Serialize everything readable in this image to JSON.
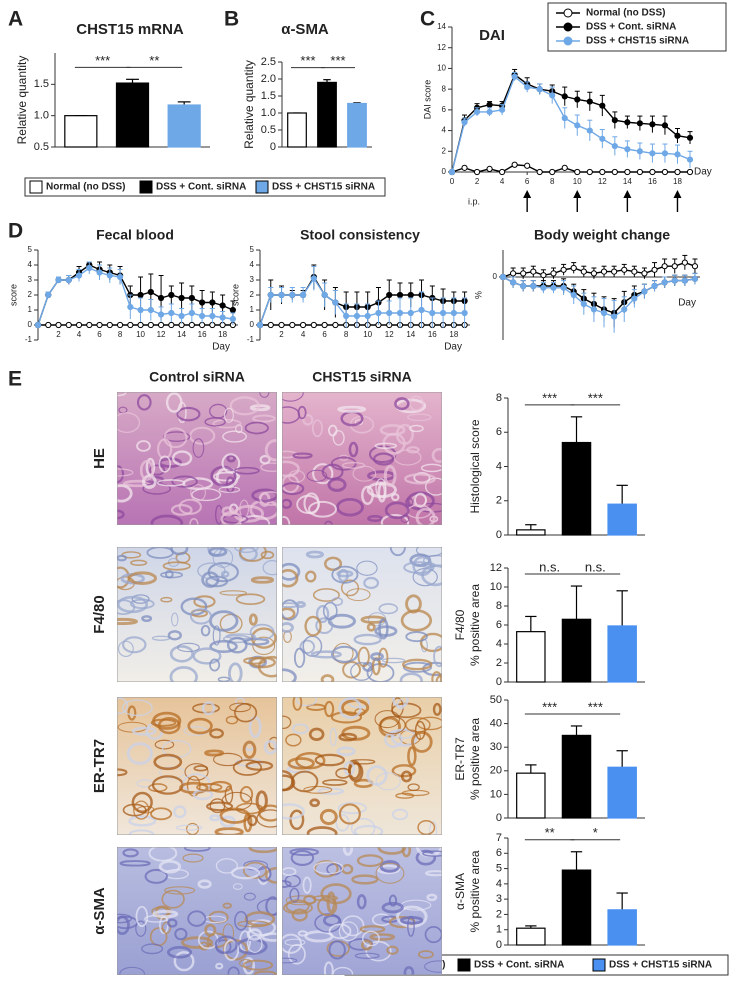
{
  "chart_data": [
    {
      "type": "bar",
      "panel": "A",
      "title": "CHST15 mRNA",
      "ylabel": [
        "Relative quantity"
      ],
      "values": [
        1.0,
        1.52,
        1.17
      ],
      "errors": [
        0,
        0.06,
        0.05
      ],
      "colors": [
        "#ffffff",
        "#000000",
        "#6fa8e6"
      ],
      "ylim": [
        0.5,
        2.0
      ],
      "yticks": [
        0.5,
        {
          "value": 1,
          "label": "1.0"
        },
        1.5
      ],
      "annotations": [
        "***",
        "**"
      ]
    },
    {
      "type": "bar",
      "panel": "B",
      "title": "α-SMA",
      "ylabel": [
        "Relative quantity"
      ],
      "values": [
        1.0,
        1.9,
        1.28
      ],
      "errors": [
        0,
        0.08,
        0.02
      ],
      "colors": [
        "#ffffff",
        "#000000",
        "#6fa8e6"
      ],
      "ylim": [
        0,
        2.5
      ],
      "yticks": [
        0,
        0.5,
        {
          "value": 1,
          "label": "1.0"
        },
        1.5,
        {
          "value": 2,
          "label": "2.0"
        },
        2.5
      ],
      "annotations": [
        "***",
        "***"
      ]
    },
    {
      "type": "line",
      "panel": "C",
      "title": "DAI",
      "ylabel": [
        "DAI score"
      ],
      "xlabel": "Day",
      "x": [
        0,
        1,
        2,
        3,
        4,
        5,
        6,
        7,
        8,
        9,
        10,
        11,
        12,
        13,
        14,
        15,
        16,
        17,
        18,
        19
      ],
      "xlim": [
        0,
        19
      ],
      "xticks": [
        0,
        2,
        4,
        6,
        8,
        10,
        12,
        14,
        16,
        18
      ],
      "ylim": [
        0,
        14
      ],
      "yticks": [
        0,
        2,
        4,
        6,
        8,
        10,
        12,
        14
      ],
      "injection_label": "i.p.",
      "injection_days": [
        6,
        10,
        14,
        18
      ],
      "series": [
        {
          "name": "Normal (no DSS)",
          "color": "#000000",
          "fill": "#ffffff",
          "values": [
            0,
            0.4,
            0,
            0.3,
            0,
            0.7,
            0.6,
            0,
            0,
            0.4,
            0,
            0,
            0,
            0,
            0,
            0,
            0,
            0,
            0,
            0
          ]
        },
        {
          "name": "DSS + Cont. siRNA",
          "color": "#000000",
          "fill": "#000000",
          "values": [
            0,
            5.0,
            6.2,
            6.5,
            6.4,
            9.4,
            8.5,
            8.0,
            7.8,
            7.3,
            7.0,
            6.8,
            6.4,
            5.0,
            4.8,
            4.7,
            4.6,
            4.5,
            3.5,
            3.3
          ],
          "errors": [
            0,
            0.5,
            0.4,
            0.3,
            0.4,
            0.5,
            0.6,
            0.5,
            0.6,
            0.9,
            0.8,
            0.9,
            1.0,
            0.8,
            0.6,
            0.7,
            0.8,
            0.9,
            0.7,
            0.6
          ]
        },
        {
          "name": "DSS + CHST15 siRNA",
          "color": "#6fa8e6",
          "fill": "#6fa8e6",
          "values": [
            0,
            4.8,
            5.8,
            5.8,
            6.0,
            9.2,
            8.2,
            8.0,
            7.4,
            5.2,
            4.5,
            4.0,
            3.2,
            2.5,
            2.2,
            2.0,
            1.8,
            1.8,
            1.7,
            1.2
          ],
          "errors": [
            0,
            0.4,
            0.4,
            0.4,
            0.5,
            0.4,
            0.5,
            0.5,
            0.8,
            1.0,
            1.0,
            1.0,
            0.9,
            0.9,
            0.8,
            0.8,
            0.9,
            0.9,
            0.9,
            0.8
          ]
        }
      ]
    },
    {
      "type": "line",
      "panel": "D",
      "title": "Fecal blood",
      "ylabel": [
        "score"
      ],
      "xlabel": "Day",
      "x": [
        0,
        1,
        2,
        3,
        4,
        5,
        6,
        7,
        8,
        9,
        10,
        11,
        12,
        13,
        14,
        15,
        16,
        17,
        18,
        19
      ],
      "xlim": [
        0,
        19.5
      ],
      "xticks": [
        2,
        4,
        6,
        8,
        10,
        12,
        14,
        16,
        18
      ],
      "ylim": [
        -1,
        5
      ],
      "yticks": [
        -1,
        0,
        1,
        2,
        3,
        4,
        5
      ],
      "series": [
        {
          "color": "#000000",
          "fill": "#ffffff",
          "values": [
            0,
            0,
            0,
            0,
            0,
            0,
            0,
            0,
            0,
            0,
            0,
            0,
            0,
            0,
            0,
            0,
            0,
            0,
            0,
            0
          ]
        },
        {
          "color": "#000000",
          "fill": "#000000",
          "values": [
            0,
            2,
            3,
            3,
            3.5,
            4,
            3.7,
            3.5,
            3.3,
            2,
            2,
            2.2,
            1.8,
            2,
            1.8,
            1.8,
            1.5,
            1.5,
            1.3,
            1.0
          ],
          "errors": [
            0,
            0.2,
            0.2,
            0.3,
            0.4,
            0.2,
            0.5,
            0.5,
            0.6,
            0.6,
            1.2,
            1.2,
            1.5,
            0.6,
            1.0,
            0.8,
            0.8,
            0.7,
            0.7,
            0.6
          ]
        },
        {
          "color": "#6fa8e6",
          "fill": "#6fa8e6",
          "values": [
            0,
            2,
            3,
            3,
            3.3,
            3.8,
            3.5,
            3.3,
            3.2,
            1.2,
            1.0,
            1.0,
            0.7,
            0.8,
            0.6,
            0.8,
            0.6,
            0.6,
            0.5,
            0.4
          ],
          "errors": [
            0,
            0.2,
            0.2,
            0.3,
            0.4,
            0.4,
            0.5,
            0.5,
            0.5,
            0.8,
            0.8,
            0.7,
            0.5,
            0.6,
            0.5,
            0.6,
            0.5,
            0.5,
            0.4,
            0.4
          ]
        }
      ]
    },
    {
      "type": "line",
      "title": "Stool consistency",
      "ylabel": [
        "score"
      ],
      "xlabel": "Day",
      "x": [
        0,
        1,
        2,
        3,
        4,
        5,
        6,
        7,
        8,
        9,
        10,
        11,
        12,
        13,
        14,
        15,
        16,
        17,
        18,
        19
      ],
      "xlim": [
        0,
        19.5
      ],
      "xticks": [
        2,
        4,
        6,
        8,
        10,
        12,
        14,
        16,
        18
      ],
      "ylim": [
        -1,
        5
      ],
      "yticks": [
        -1,
        0,
        1,
        2,
        3,
        4,
        5
      ],
      "series": [
        {
          "color": "#000000",
          "fill": "#ffffff",
          "values": [
            0,
            0,
            0,
            0,
            0,
            0,
            0,
            0,
            0,
            0,
            0,
            0,
            0,
            0,
            0,
            0,
            0,
            0,
            0,
            0
          ]
        },
        {
          "color": "#000000",
          "fill": "#000000",
          "values": [
            0,
            2,
            2,
            2,
            2,
            3.2,
            2,
            1.5,
            1.2,
            1.2,
            1.2,
            1.5,
            2,
            2,
            2,
            2,
            1.8,
            1.6,
            1.6,
            1.6
          ],
          "errors": [
            0,
            1,
            0.6,
            0.3,
            0.3,
            0.8,
            1,
            1,
            1,
            1,
            1,
            1,
            1,
            0.8,
            0.8,
            1,
            0.8,
            0.8,
            0.6,
            0.6
          ]
        },
        {
          "color": "#6fa8e6",
          "fill": "#6fa8e6",
          "values": [
            0,
            2,
            2,
            2,
            2,
            3.1,
            2,
            1.5,
            0.6,
            0.6,
            0.6,
            0.8,
            0.8,
            0.8,
            0.8,
            1,
            0.8,
            0.8,
            0.8,
            0.8
          ],
          "errors": [
            0,
            0.5,
            0.5,
            0.5,
            0.5,
            0.8,
            0.8,
            0.8,
            0.8,
            0.8,
            0.8,
            0.8,
            0.8,
            1,
            1,
            1.2,
            1,
            1,
            1,
            1
          ]
        }
      ]
    },
    {
      "type": "line",
      "title": "Body weight change",
      "ylabel": [
        "%"
      ],
      "xlabel": "Day",
      "x": [
        0,
        1,
        2,
        3,
        4,
        5,
        6,
        7,
        8,
        9,
        10,
        11,
        12,
        13,
        14,
        15,
        16,
        17,
        18,
        19
      ],
      "xlim": [
        0,
        19.5
      ],
      "ylim": [
        -35,
        15
      ],
      "yticks": [
        0
      ],
      "series": [
        {
          "color": "#000000",
          "fill": "#ffffff",
          "values": [
            0,
            2,
            2,
            3,
            1,
            2,
            4,
            5,
            3,
            2,
            3,
            3,
            4,
            3,
            2,
            4,
            6,
            6,
            8,
            6
          ],
          "errors": [
            0,
            3,
            3,
            3,
            3,
            3,
            3,
            3,
            3,
            3,
            3,
            3,
            3,
            3,
            3,
            4,
            4,
            4,
            4,
            4
          ]
        },
        {
          "color": "#000000",
          "fill": "#000000",
          "values": [
            0,
            -3,
            -5,
            -5,
            -5,
            -5,
            -5,
            -8,
            -12,
            -15,
            -18,
            -20,
            -14,
            -10,
            -8,
            -5,
            -3,
            -2,
            -2,
            -1
          ],
          "errors": [
            0,
            3,
            3,
            3,
            3,
            3,
            4,
            4,
            5,
            6,
            7,
            8,
            6,
            5,
            4,
            3,
            3,
            3,
            3,
            3
          ]
        },
        {
          "color": "#6fa8e6",
          "fill": "#6fa8e6",
          "values": [
            0,
            -3,
            -5,
            -5,
            -6,
            -6,
            -6,
            -10,
            -15,
            -18,
            -20,
            -22,
            -18,
            -12,
            -8,
            -5,
            -3,
            -2,
            -2,
            -1
          ],
          "errors": [
            0,
            3,
            3,
            3,
            3,
            3,
            4,
            5,
            6,
            7,
            8,
            9,
            7,
            5,
            4,
            3,
            3,
            3,
            3,
            3
          ]
        }
      ]
    },
    {
      "type": "bar",
      "panel": "E",
      "ylabel": [
        "Histological score"
      ],
      "values": [
        0.3,
        5.4,
        1.8
      ],
      "errors": [
        0.3,
        1.5,
        1.1
      ],
      "colors": [
        "#ffffff",
        "#000000",
        "#4a90f0"
      ],
      "ylim": [
        0,
        8
      ],
      "yticks": [
        0,
        2,
        4,
        6,
        8
      ],
      "annotations": [
        "***",
        "***"
      ]
    },
    {
      "type": "bar",
      "ylabel": [
        "F4/80",
        "% positive area"
      ],
      "values": [
        5.3,
        6.6,
        5.9
      ],
      "errors": [
        1.6,
        3.5,
        3.7
      ],
      "colors": [
        "#ffffff",
        "#000000",
        "#4a90f0"
      ],
      "ylim": [
        0,
        12
      ],
      "yticks": [
        0,
        2,
        4,
        6,
        8,
        10,
        12
      ],
      "annotations": [
        "n.s.",
        "n.s."
      ]
    },
    {
      "type": "bar",
      "ylabel": [
        "ER-TR7",
        "% positive area"
      ],
      "values": [
        19,
        35,
        21.5
      ],
      "errors": [
        3.5,
        4,
        7
      ],
      "colors": [
        "#ffffff",
        "#000000",
        "#4a90f0"
      ],
      "ylim": [
        0,
        50
      ],
      "yticks": [
        0,
        10,
        20,
        30,
        40,
        50
      ],
      "annotations": [
        "***",
        "***"
      ]
    },
    {
      "type": "bar",
      "ylabel": [
        "α-SMA",
        "% positive area"
      ],
      "values": [
        1.1,
        4.9,
        2.3
      ],
      "errors": [
        0.15,
        1.2,
        1.1
      ],
      "colors": [
        "#ffffff",
        "#000000",
        "#4a90f0"
      ],
      "ylim": [
        0,
        7
      ],
      "yticks": [
        0,
        1,
        2,
        3,
        4,
        5,
        6,
        7
      ],
      "annotations": [
        "**",
        "*"
      ]
    }
  ],
  "legends": [
    {
      "labels": [
        "Normal (no DSS)",
        "DSS + Cont. siRNA",
        "DSS + CHST15 siRNA"
      ],
      "colors": [
        "#ffffff",
        "#000000",
        "#6fa8e6"
      ]
    },
    {
      "labels": [
        "Normal (no DSS)",
        "DSS + Cont. siRNA",
        "DSS + CHST15 siRNA"
      ],
      "colors": [
        "#ffffff",
        "#000000",
        "#4a90f0"
      ]
    }
  ],
  "micrographs": {
    "columns": [
      "Control siRNA",
      "CHST15 siRNA"
    ],
    "rows": [
      {
        "label": "HE",
        "color": "#000000"
      },
      {
        "label": "F4/80",
        "color": "#a0642d"
      },
      {
        "label": "ER-TR7",
        "color": "#a0642d"
      },
      {
        "label": "α-SMA",
        "color": "#a0642d"
      }
    ]
  }
}
